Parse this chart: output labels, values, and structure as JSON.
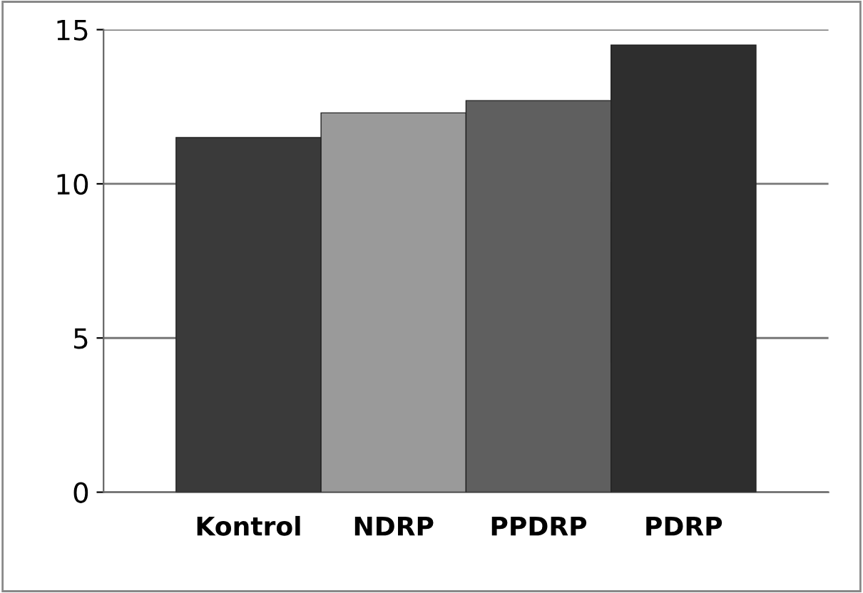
{
  "chart_data": {
    "type": "bar",
    "categories": [
      "Kontrol",
      "NDRP",
      "PPDRP",
      "PDRP"
    ],
    "values": [
      11.5,
      12.3,
      12.7,
      14.5
    ],
    "colors": [
      "#3a3a3a",
      "#9a9a9a",
      "#5f5f5f",
      "#2e2e2e"
    ],
    "ylim": [
      0,
      15
    ],
    "yticks": [
      0,
      5,
      10,
      15
    ],
    "grid": "y"
  }
}
